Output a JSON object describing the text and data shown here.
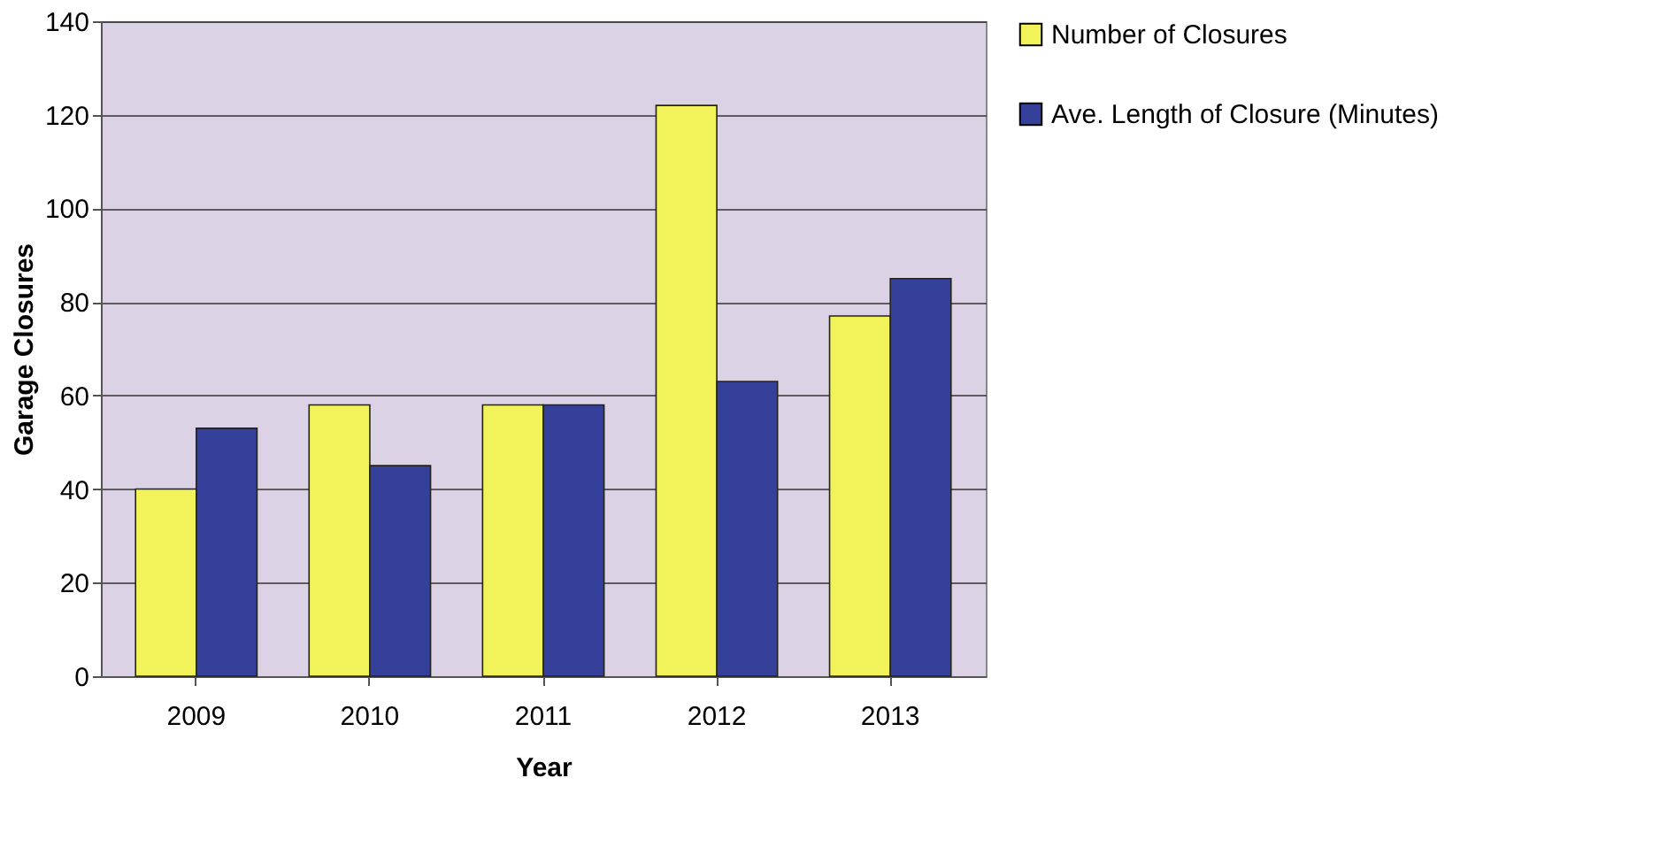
{
  "chart_data": {
    "type": "bar",
    "xlabel": "Year",
    "ylabel": "Garage Closures",
    "categories": [
      "2009",
      "2010",
      "2011",
      "2012",
      "2013"
    ],
    "series": [
      {
        "name": "Number of Closures",
        "color": "#f2f25a",
        "values": [
          40,
          58,
          58,
          122,
          77
        ]
      },
      {
        "name": "Ave. Length of Closure (Minutes)",
        "color": "#34409a",
        "values": [
          53,
          45,
          58,
          63,
          85
        ]
      }
    ],
    "ylim": [
      0,
      140
    ],
    "yticks": [
      0,
      20,
      40,
      60,
      80,
      100,
      120,
      140
    ],
    "grid": "y",
    "legend": "right"
  }
}
